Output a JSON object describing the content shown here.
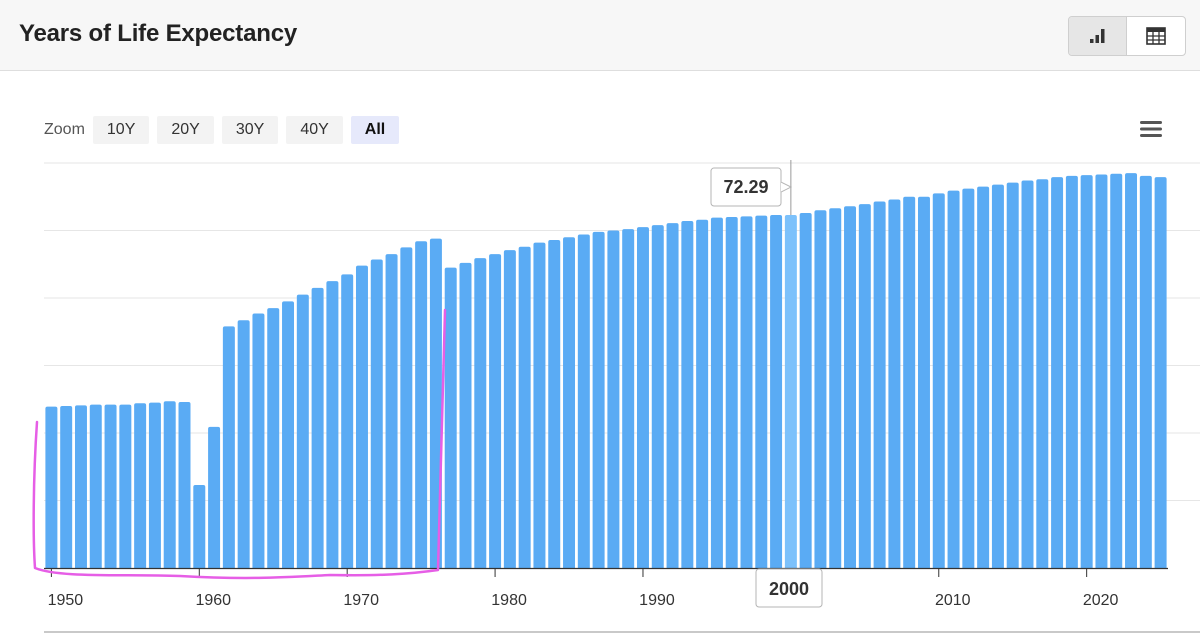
{
  "header": {
    "title": "Years of Life Expectancy",
    "icons": {
      "chart_view": "bar-chart-icon",
      "table_view": "table-grid-icon"
    }
  },
  "zoom": {
    "label": "Zoom",
    "options": [
      "10Y",
      "20Y",
      "30Y",
      "40Y",
      "All"
    ],
    "selected": "All"
  },
  "menu_icon": "hamburger-menu-icon",
  "colors": {
    "bar": "#5aabf4",
    "bar_hover": "#7cc1fb",
    "annotation": "#e65ee6",
    "grid": "#e6e6e6",
    "axis": "#333333"
  },
  "tooltip": {
    "value": "72.29",
    "year_label": "2000"
  },
  "chart_data": {
    "type": "bar",
    "x": [
      1950,
      1951,
      1952,
      1953,
      1954,
      1955,
      1956,
      1957,
      1958,
      1959,
      1960,
      1961,
      1962,
      1963,
      1964,
      1965,
      1966,
      1967,
      1968,
      1969,
      1970,
      1971,
      1972,
      1973,
      1974,
      1975,
      1976,
      1977,
      1978,
      1979,
      1980,
      1981,
      1982,
      1983,
      1984,
      1985,
      1986,
      1987,
      1988,
      1989,
      1990,
      1991,
      1992,
      1993,
      1994,
      1995,
      1996,
      1997,
      1998,
      1999,
      2000,
      2001,
      2002,
      2003,
      2004,
      2005,
      2006,
      2007,
      2008,
      2009,
      2010,
      2011,
      2012,
      2013,
      2014,
      2015,
      2016,
      2017,
      2018,
      2019,
      2020,
      2021,
      2022,
      2023,
      2024,
      2025
    ],
    "values": [
      43.9,
      44.0,
      44.1,
      44.2,
      44.2,
      44.2,
      44.4,
      44.5,
      44.7,
      44.6,
      32.3,
      40.9,
      55.8,
      56.7,
      57.7,
      58.5,
      59.5,
      60.5,
      61.5,
      62.5,
      63.5,
      64.8,
      65.7,
      66.5,
      67.5,
      68.4,
      68.8,
      64.5,
      65.2,
      65.9,
      66.5,
      67.1,
      67.6,
      68.2,
      68.6,
      69.0,
      69.4,
      69.8,
      70.0,
      70.2,
      70.5,
      70.8,
      71.1,
      71.4,
      71.6,
      71.9,
      72.0,
      72.1,
      72.2,
      72.3,
      72.29,
      72.6,
      73.0,
      73.3,
      73.6,
      73.9,
      74.3,
      74.6,
      75.0,
      75.0,
      75.5,
      75.9,
      76.2,
      76.5,
      76.8,
      77.1,
      77.4,
      77.6,
      77.9,
      78.1,
      78.2,
      78.3,
      78.4,
      78.5,
      78.1,
      77.9
    ],
    "highlighted_x": 2000,
    "x_ticks": [
      1950,
      1960,
      1970,
      1980,
      1990,
      2000,
      2010,
      2020
    ],
    "ylim": [
      20,
      80
    ],
    "y_gridlines": [
      20,
      30,
      40,
      50,
      60,
      70,
      80
    ],
    "grid": true
  }
}
